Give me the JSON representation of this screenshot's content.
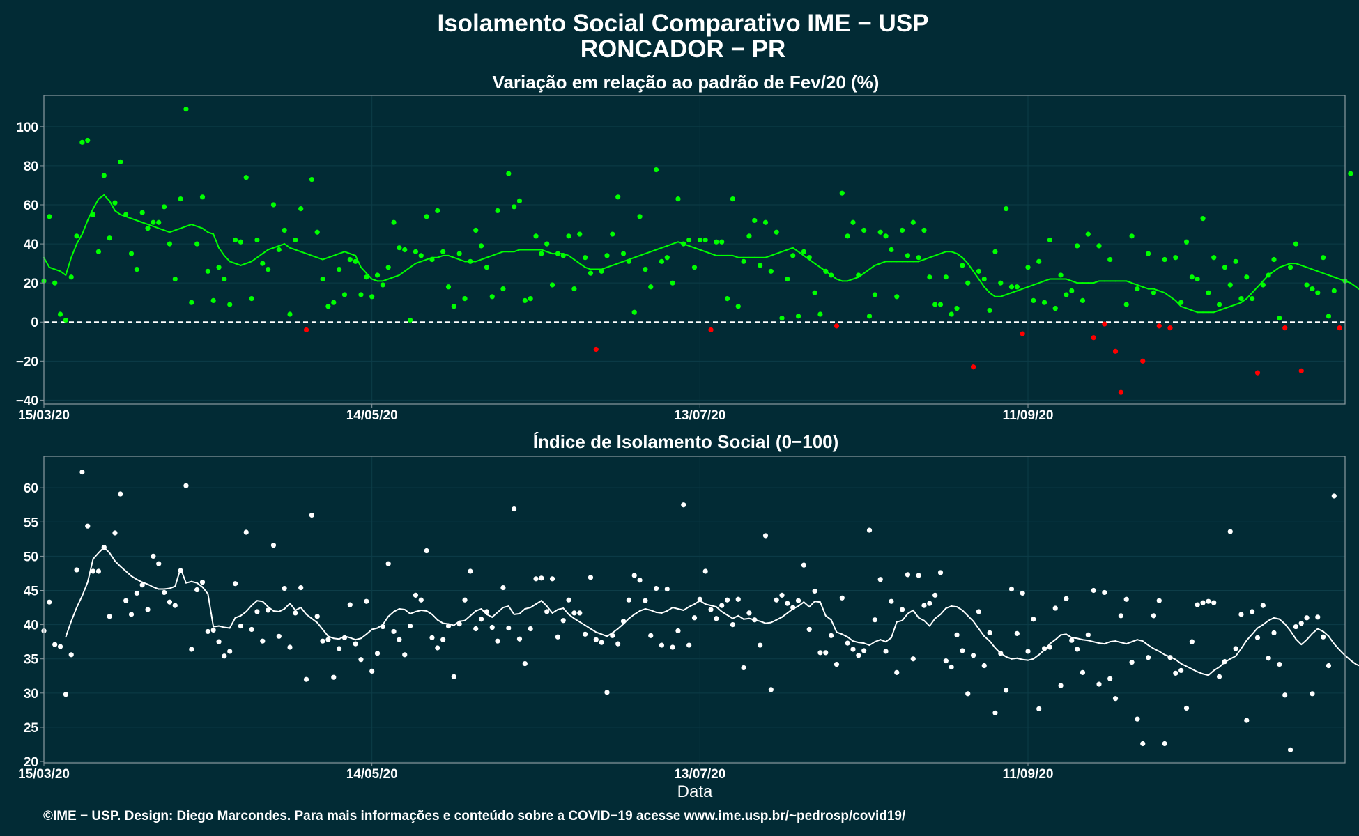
{
  "header": {
    "title_line1": "Isolamento Social Comparativo IME − USP",
    "title_line2": "RONCADOR − PR"
  },
  "footer": {
    "credit": "©IME − USP. Design: Diego Marcondes. Para mais informações e conteúdo sobre a COVID−19 acesse www.ime.usp.br/~pedrosp/covid19/"
  },
  "colors": {
    "background": "#022b35",
    "panel_border": "#8a9aa0",
    "grid": "#0d3d48",
    "positive": "#00ff00",
    "negative": "#ff0000",
    "index": "#ffffff"
  },
  "chart_data": [
    {
      "type": "scatter",
      "title": "Variação em relação ao padrão de Fev/20 (%)",
      "xlabel": "",
      "ylabel": "",
      "xlim": [
        "2020-03-15",
        "2020-11-08"
      ],
      "ylim": [
        -42,
        116
      ],
      "yticks": [
        -40,
        -20,
        0,
        20,
        40,
        60,
        80,
        100
      ],
      "xticks": [
        {
          "date": "2020-03-15",
          "label": "15/03/20"
        },
        {
          "date": "2020-05-14",
          "label": "14/05/20"
        },
        {
          "date": "2020-07-13",
          "label": "13/07/20"
        },
        {
          "date": "2020-09-11",
          "label": "11/09/20"
        }
      ],
      "reference_line": 0,
      "grid": true,
      "color_rule": "green when value >= 0, red when value < 0",
      "start_date": "2020-03-15",
      "series": [
        {
          "kind": "points",
          "values": [
            21,
            54,
            20,
            4,
            1,
            23,
            44,
            92,
            93,
            55,
            36,
            75,
            43,
            61,
            82,
            55,
            35,
            27,
            56,
            48,
            51,
            51,
            59,
            40,
            22,
            63,
            109,
            10,
            40,
            64,
            26,
            11,
            28,
            22,
            9,
            42,
            41,
            74,
            12,
            42,
            30,
            27,
            60,
            37,
            47,
            4,
            42,
            58,
            -4,
            73,
            46,
            22,
            8,
            10,
            27,
            14,
            32,
            31,
            14,
            23,
            13,
            24,
            19,
            28,
            51,
            38,
            37,
            1,
            36,
            34,
            54,
            32,
            57,
            36,
            18,
            8,
            35,
            12,
            31,
            47,
            39,
            28,
            13,
            57,
            17,
            76,
            59,
            62,
            11,
            12,
            44,
            35,
            40,
            19,
            35,
            34,
            44,
            17,
            45,
            33,
            25,
            -14,
            26,
            34,
            45,
            64,
            35,
            31,
            5,
            54,
            27,
            18,
            78,
            31,
            33,
            20,
            63,
            40,
            42,
            28,
            42,
            42,
            -4,
            41,
            41,
            12,
            63,
            8,
            31,
            44,
            52,
            29,
            51,
            26,
            46,
            2,
            22,
            34,
            3,
            36,
            33,
            15,
            4,
            26,
            24,
            -2,
            66,
            44,
            51,
            24,
            47,
            3,
            14,
            46,
            44,
            37,
            13,
            47,
            34,
            51,
            33,
            47,
            23,
            9,
            9,
            23,
            4,
            7,
            29,
            20,
            -23,
            26,
            22,
            6,
            36,
            20,
            58,
            18,
            18,
            -6,
            28,
            11,
            31,
            10,
            42,
            7,
            24,
            14,
            16,
            39,
            11,
            45,
            -8,
            39,
            -1,
            32,
            -15,
            -36,
            9,
            44,
            17,
            -20,
            35,
            15,
            -2,
            32,
            -3,
            33,
            10,
            41,
            23,
            22,
            53,
            15,
            33,
            9,
            28,
            19,
            31,
            12,
            23,
            12,
            -26,
            19,
            24,
            32,
            2,
            -3,
            28,
            40,
            -25,
            19,
            17,
            15,
            33,
            3,
            16,
            -3,
            21,
            76
          ]
        },
        {
          "kind": "line",
          "values": [
            33,
            28,
            27,
            26,
            24,
            33,
            40,
            45,
            52,
            58,
            63,
            65,
            62,
            57,
            55,
            54,
            53,
            52,
            51,
            50,
            49,
            48,
            47,
            46,
            47,
            48,
            49,
            50,
            49,
            48,
            46,
            45,
            38,
            34,
            31,
            30,
            29,
            30,
            31,
            33,
            35,
            37,
            38,
            39,
            40,
            38,
            37,
            36,
            35,
            34,
            33,
            32,
            33,
            34,
            35,
            36,
            35,
            34,
            28,
            25,
            22,
            21,
            21,
            22,
            23,
            24,
            26,
            28,
            30,
            31,
            32,
            33,
            33,
            34,
            34,
            33,
            32,
            31,
            31,
            31,
            32,
            33,
            34,
            35,
            36,
            36,
            36,
            37,
            37,
            37,
            37,
            37,
            36,
            35,
            35,
            35,
            34,
            32,
            30,
            28,
            27,
            27,
            27,
            28,
            29,
            30,
            31,
            32,
            33,
            34,
            35,
            36,
            37,
            38,
            39,
            40,
            41,
            40,
            39,
            38,
            37,
            36,
            35,
            34,
            34,
            34,
            34,
            33,
            33,
            33,
            33,
            33,
            33,
            34,
            35,
            36,
            37,
            38,
            36,
            34,
            32,
            30,
            28,
            26,
            24,
            22,
            21,
            21,
            22,
            23,
            25,
            27,
            29,
            30,
            31,
            31,
            31,
            31,
            31,
            31,
            31,
            32,
            33,
            34,
            35,
            36,
            36,
            35,
            33,
            30,
            26,
            22,
            18,
            15,
            13,
            13,
            14,
            15,
            16,
            17,
            18,
            19,
            20,
            21,
            22,
            22,
            22,
            22,
            21,
            20,
            20,
            20,
            20,
            21,
            21,
            21,
            21,
            21,
            21,
            20,
            19,
            18,
            17,
            17,
            16,
            15,
            13,
            11,
            8,
            7,
            6,
            5,
            5,
            5,
            5,
            6,
            7,
            8,
            9,
            10,
            12,
            15,
            18,
            21,
            24,
            26,
            28,
            29,
            30,
            30,
            29,
            28,
            27,
            26,
            25,
            24,
            23,
            22,
            21,
            20,
            18,
            16,
            14,
            12,
            11,
            11,
            12,
            14,
            17,
            20,
            24,
            27,
            30
          ]
        }
      ]
    },
    {
      "type": "scatter",
      "title": "Índice de Isolamento Social (0−100)",
      "xlabel": "Data",
      "ylabel": "",
      "xlim": [
        "2020-03-15",
        "2020-11-08"
      ],
      "ylim": [
        19.8,
        64.6
      ],
      "yticks": [
        20,
        25,
        30,
        35,
        40,
        45,
        50,
        55,
        60
      ],
      "xticks": [
        {
          "date": "2020-03-15",
          "label": "15/03/20"
        },
        {
          "date": "2020-05-14",
          "label": "14/05/20"
        },
        {
          "date": "2020-07-13",
          "label": "13/07/20"
        },
        {
          "date": "2020-09-11",
          "label": "11/09/20"
        }
      ],
      "grid": true,
      "start_date": "2020-03-15",
      "series": [
        {
          "kind": "points",
          "values": [
            39.1,
            43.3,
            37.1,
            36.8,
            29.8,
            35.6,
            48,
            62.3,
            54.4,
            47.8,
            47.8,
            51.3,
            41.2,
            53.4,
            59.1,
            43.5,
            41.5,
            44.6,
            45.8,
            42.2,
            50,
            48.9,
            44.7,
            43.3,
            42.8,
            47.9,
            60.3,
            36.4,
            45.1,
            46.2,
            39,
            39.2,
            37.5,
            35.4,
            36.1,
            46,
            39.8,
            53.5,
            39.3,
            41.9,
            37.6,
            42.1,
            51.6,
            38.3,
            45.3,
            36.7,
            41.7,
            45.4,
            32,
            56,
            41.2,
            37.6,
            37.8,
            32.3,
            36.5,
            38.1,
            42.9,
            37.2,
            34.9,
            43.4,
            33.2,
            35.8,
            39.7,
            48.9,
            39,
            37.8,
            35.6,
            39.8,
            44.3,
            43.6,
            50.8,
            38.1,
            36.6,
            37.8,
            39.8,
            32.4,
            40.1,
            43.6,
            47.8,
            39.4,
            40.8,
            41.9,
            39.6,
            37.6,
            45.4,
            39.5,
            56.9,
            37.9,
            34.3,
            39.4,
            46.7,
            46.8,
            41.9,
            46.7,
            38.2,
            40.6,
            43.6,
            41.7,
            41.7,
            38.6,
            46.9,
            37.8,
            37.4,
            30.1,
            38.4,
            37.2,
            40.5,
            43.6,
            47.2,
            46.5,
            43.5,
            38.4,
            45.3,
            37,
            45.2,
            36.7,
            39.1,
            57.5,
            37,
            41,
            43.7,
            47.8,
            42.2,
            40.9,
            42.8,
            43.6,
            40,
            43.7,
            33.7,
            41.7,
            40.7,
            37,
            53,
            30.5,
            43.6,
            44.3,
            43.1,
            42.5,
            43.5,
            48.7,
            39.3,
            44.9,
            35.9,
            35.9,
            38.4,
            34.2,
            43.9,
            37.3,
            36.4,
            35.5,
            36.2,
            53.8,
            40.7,
            46.6,
            36.1,
            43.4,
            33,
            42.2,
            47.3,
            35,
            47.2,
            42.8,
            43.1,
            44.3,
            47.6,
            34.7,
            33.8,
            38.5,
            36.2,
            29.9,
            35.5,
            41.9,
            34,
            38.8,
            27.1,
            35.8,
            30.4,
            45.2,
            38.7,
            44.6,
            36.1,
            40.8,
            27.7,
            36.5,
            36.7,
            42.4,
            31.1,
            43.8,
            37.7,
            36.4,
            33,
            38.5,
            45,
            31.3,
            44.7,
            32.1,
            29.2,
            41.3,
            43.7,
            34.5,
            26.2,
            22.6,
            35.2,
            41.3,
            43.5,
            22.6,
            35.2,
            32.9,
            33.3,
            27.8,
            37.5,
            42.9,
            43.2,
            43.4,
            43.2,
            32.4,
            34.6,
            53.6,
            36.5,
            41.5,
            26,
            41.9,
            38.1,
            42.8,
            35.1,
            38.8,
            34.2,
            29.7,
            21.7,
            39.7,
            40.2,
            41,
            29.9,
            41.1,
            38.2,
            34,
            58.8
          ]
        },
        {
          "kind": "line",
          "values": [
            null,
            null,
            null,
            null,
            38.2,
            40.5,
            42.5,
            44.2,
            46.2,
            49.6,
            50.5,
            51.3,
            50.5,
            49.3,
            48.5,
            47.8,
            47.1,
            46.6,
            46.2,
            45.9,
            45.5,
            45.2,
            45.2,
            45.3,
            45.6,
            48.2,
            46.1,
            46.3,
            46.1,
            45.5,
            44.5,
            39.7,
            39.8,
            39.6,
            39.5,
            41,
            41.3,
            41.9,
            42.8,
            43.5,
            43.4,
            42.6,
            42,
            41.9,
            42.3,
            43.1,
            42.1,
            42.5,
            41.5,
            40.9,
            40.3,
            39.3,
            38.3,
            38,
            37.9,
            38.3,
            38.1,
            37.8,
            38,
            38.6,
            39.3,
            39.5,
            40,
            41.2,
            41.9,
            42.3,
            42.2,
            41.6,
            41.9,
            42.1,
            42,
            41.5,
            40.7,
            40.2,
            40.1,
            39.9,
            40.5,
            40.6,
            41.3,
            42,
            42.3,
            41.5,
            41.1,
            41.8,
            42.5,
            42.7,
            41.5,
            41.6,
            42.3,
            42.5,
            43,
            43.5,
            42.7,
            41.7,
            42.2,
            42.4,
            41.5,
            40.9,
            40.4,
            39.9,
            39.4,
            38.9,
            38.6,
            38.3,
            38.8,
            39.4,
            40.1,
            40.9,
            41.5,
            42,
            42.3,
            42.1,
            41.8,
            41.7,
            42,
            42.5,
            42.3,
            42.1,
            42.6,
            43,
            43.5,
            43,
            42.8,
            42.6,
            41.9,
            41.4,
            40.9,
            41.3,
            40.8,
            40.9,
            40.7,
            40.5,
            40.2,
            40.3,
            40.7,
            41.1,
            41.7,
            42.3,
            42.7,
            43.3,
            42.6,
            43.4,
            43.3,
            41.3,
            40.7,
            38.9,
            38.6,
            38.2,
            37.6,
            37.4,
            37.3,
            37,
            37.5,
            37.8,
            37.5,
            38.1,
            40.4,
            40.6,
            41.6,
            42.1,
            41,
            40.6,
            39.8,
            40.9,
            41.5,
            42.4,
            42.7,
            42.6,
            42.1,
            41.3,
            40.5,
            39.4,
            38.3,
            37.6,
            36.6,
            35.8,
            35.3,
            35,
            35.1,
            34.9,
            34.8,
            35,
            35.6,
            36.3,
            37.2,
            37.8,
            38.5,
            38.6,
            38.1,
            38,
            37.8,
            37.7,
            37.5,
            37.3,
            37.2,
            37.5,
            37.6,
            37.4,
            37.2,
            37.5,
            37.8,
            37.6,
            37,
            36.5,
            36.1,
            35.6,
            35.3,
            34.9,
            34.3,
            33.9,
            33.5,
            33.1,
            32.8,
            32.6,
            33.3,
            33.8,
            34.5,
            35,
            35.4,
            36.5,
            37.7,
            38.6,
            39.5,
            40,
            40.6,
            41,
            40.8,
            40.1,
            39.1,
            37.9,
            37.1,
            37.8,
            38.7,
            39.4,
            39,
            38.3,
            37.2,
            36.3,
            35.5,
            34.8,
            34.2,
            33.9,
            34.1,
            34.8,
            35.6,
            36.6,
            38.3,
            40.2,
            40.5,
            40,
            38.3,
            38.2,
            38.7
          ]
        }
      ]
    }
  ]
}
